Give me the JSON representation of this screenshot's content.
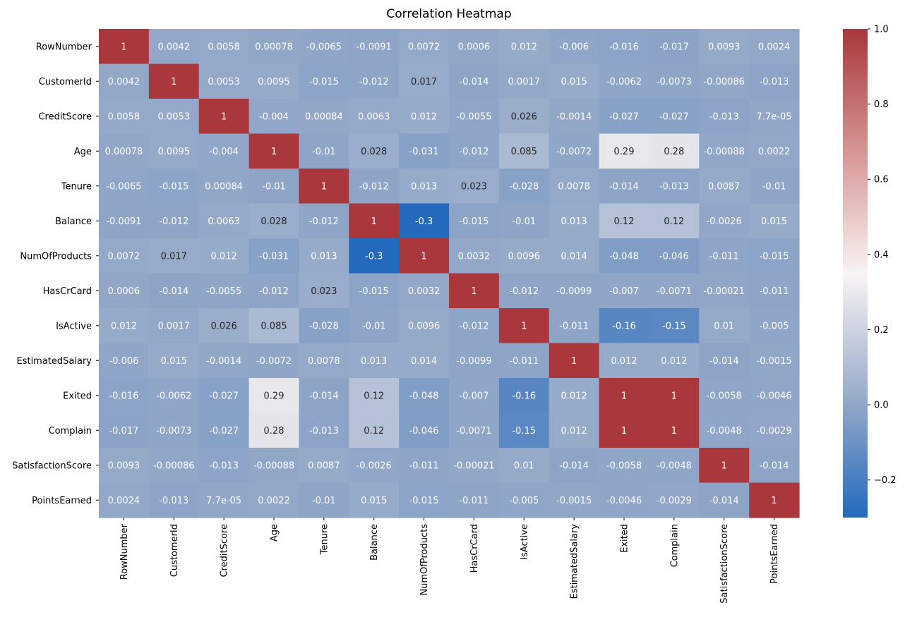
{
  "chart_data": {
    "type": "heatmap",
    "title": "Correlation Heatmap",
    "xlabel": "",
    "ylabel": "",
    "variables": [
      "RowNumber",
      "CustomerId",
      "CreditScore",
      "Age",
      "Tenure",
      "Balance",
      "NumOfProducts",
      "HasCrCard",
      "IsActive",
      "EstimatedSalary",
      "Exited",
      "Complain",
      "SatisfactionScore",
      "PointsEarned"
    ],
    "annotations": [
      [
        "1",
        "0.0042",
        "0.0058",
        "0.00078",
        "-0.0065",
        "-0.0091",
        "0.0072",
        "0.0006",
        "0.012",
        "-0.006",
        "-0.016",
        "-0.017",
        "0.0093",
        "0.0024"
      ],
      [
        "0.0042",
        "1",
        "0.0053",
        "0.0095",
        "-0.015",
        "-0.012",
        "0.017",
        "-0.014",
        "0.0017",
        "0.015",
        "-0.0062",
        "-0.0073",
        "-0.00086",
        "-0.013"
      ],
      [
        "0.0058",
        "0.0053",
        "1",
        "-0.004",
        "0.00084",
        "0.0063",
        "0.012",
        "-0.0055",
        "0.026",
        "-0.0014",
        "-0.027",
        "-0.027",
        "-0.013",
        "7.7e-05"
      ],
      [
        "0.00078",
        "0.0095",
        "-0.004",
        "1",
        "-0.01",
        "0.028",
        "-0.031",
        "-0.012",
        "0.085",
        "-0.0072",
        "0.29",
        "0.28",
        "-0.00088",
        "0.0022"
      ],
      [
        "-0.0065",
        "-0.015",
        "0.00084",
        "-0.01",
        "1",
        "-0.012",
        "0.013",
        "0.023",
        "-0.028",
        "0.0078",
        "-0.014",
        "-0.013",
        "0.0087",
        "-0.01"
      ],
      [
        "-0.0091",
        "-0.012",
        "0.0063",
        "0.028",
        "-0.012",
        "1",
        "-0.3",
        "-0.015",
        "-0.01",
        "0.013",
        "0.12",
        "0.12",
        "-0.0026",
        "0.015"
      ],
      [
        "0.0072",
        "0.017",
        "0.012",
        "-0.031",
        "0.013",
        "-0.3",
        "1",
        "0.0032",
        "0.0096",
        "0.014",
        "-0.048",
        "-0.046",
        "-0.011",
        "-0.015"
      ],
      [
        "0.0006",
        "-0.014",
        "-0.0055",
        "-0.012",
        "0.023",
        "-0.015",
        "0.0032",
        "1",
        "-0.012",
        "-0.0099",
        "-0.007",
        "-0.0071",
        "-0.00021",
        "-0.011"
      ],
      [
        "0.012",
        "0.0017",
        "0.026",
        "0.085",
        "-0.028",
        "-0.01",
        "0.0096",
        "-0.012",
        "1",
        "-0.011",
        "-0.16",
        "-0.15",
        "0.01",
        "-0.005"
      ],
      [
        "-0.006",
        "0.015",
        "-0.0014",
        "-0.0072",
        "0.0078",
        "0.013",
        "0.014",
        "-0.0099",
        "-0.011",
        "1",
        "0.012",
        "0.012",
        "-0.014",
        "-0.0015"
      ],
      [
        "-0.016",
        "-0.0062",
        "-0.027",
        "0.29",
        "-0.014",
        "0.12",
        "-0.048",
        "-0.007",
        "-0.16",
        "0.012",
        "1",
        "1",
        "-0.0058",
        "-0.0046"
      ],
      [
        "-0.017",
        "-0.0073",
        "-0.027",
        "0.28",
        "-0.013",
        "0.12",
        "-0.046",
        "-0.0071",
        "-0.15",
        "0.012",
        "1",
        "1",
        "-0.0048",
        "-0.0029"
      ],
      [
        "0.0093",
        "-0.00086",
        "-0.013",
        "-0.00088",
        "0.0087",
        "-0.0026",
        "-0.011",
        "-0.00021",
        "0.01",
        "-0.014",
        "-0.0058",
        "-0.0048",
        "1",
        "-0.014"
      ],
      [
        "0.0024",
        "-0.013",
        "7.7e-05",
        "0.0022",
        "-0.01",
        "0.015",
        "-0.015",
        "-0.011",
        "-0.005",
        "-0.0015",
        "-0.0046",
        "-0.0029",
        "-0.014",
        "1"
      ]
    ],
    "colormap": {
      "name": "vlag",
      "stops": [
        {
          "value": -0.3,
          "color": "#2369bd"
        },
        {
          "value": 0.0,
          "color": "#92a7c8"
        },
        {
          "value": 0.35,
          "color": "#f9f4f4"
        },
        {
          "value": 0.65,
          "color": "#d89c9b"
        },
        {
          "value": 1.0,
          "color": "#a9373b"
        }
      ]
    },
    "vmin": -0.3,
    "vmax": 1.0,
    "colorbar": {
      "ticks": [
        1.0,
        0.8,
        0.6,
        0.4,
        0.2,
        0.0,
        -0.2
      ],
      "tick_labels": [
        "1.0",
        "0.8",
        "0.6",
        "0.4",
        "0.2",
        "0.0",
        "−0.2"
      ],
      "placement": "right"
    },
    "text_colors": {
      "light": "#ffffff",
      "dark": "#262626"
    },
    "grid": false
  }
}
